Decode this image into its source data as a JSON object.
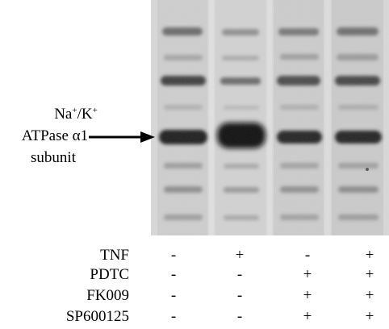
{
  "protein_label": {
    "line1_a": "Na",
    "line1_sup1": "+",
    "line1_b": "/K",
    "line1_sup2": "+",
    "line2": "ATPase α1",
    "line3": "subunit"
  },
  "treatments": [
    {
      "name": "TNF",
      "values": [
        "-",
        "+",
        "-",
        "+"
      ]
    },
    {
      "name": "PDTC",
      "values": [
        "-",
        "-",
        "+",
        "+"
      ]
    },
    {
      "name": "FK009",
      "values": [
        "-",
        "-",
        "+",
        "+"
      ]
    },
    {
      "name": "SP600125",
      "values": [
        "-",
        "-",
        "+",
        "+"
      ]
    }
  ],
  "colors": {
    "blot_background": "#dcdcdc",
    "band_dark": "#1a1a1a",
    "band_light": "#8a8a8a"
  }
}
